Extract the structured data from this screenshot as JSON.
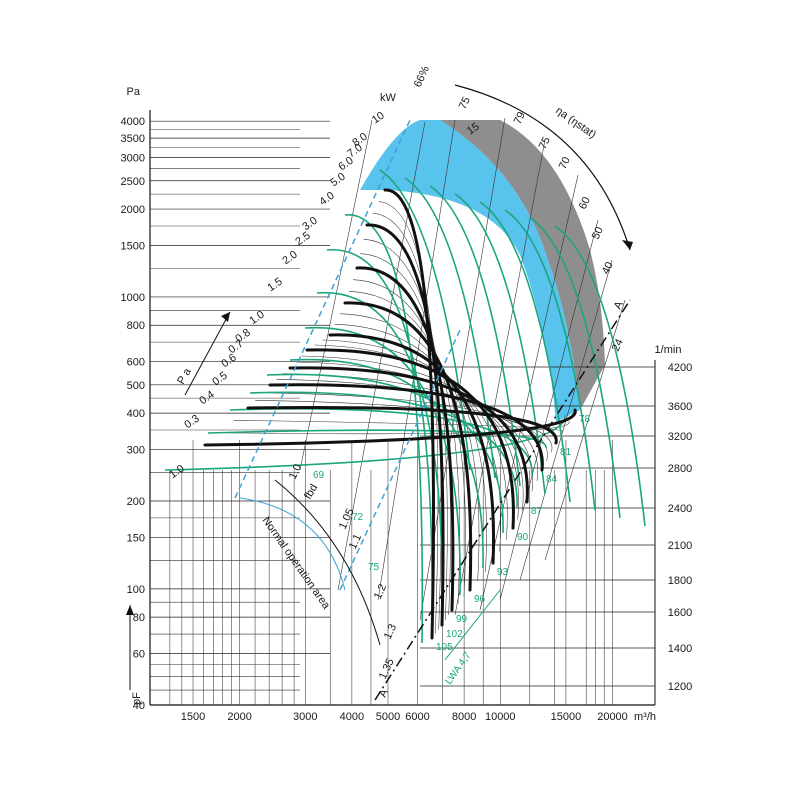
{
  "chart_data": {
    "type": "line",
    "title": "",
    "y_axis": {
      "unit": "Pa",
      "symbol": "pF",
      "scale": "log",
      "range": [
        40,
        4200
      ],
      "ticks": [
        40,
        60,
        80,
        100,
        150,
        200,
        300,
        400,
        500,
        600,
        800,
        1000,
        1500,
        2000,
        2500,
        3000,
        3500,
        4000
      ]
    },
    "x_axis": {
      "unit": "m³/h",
      "scale": "log",
      "range": [
        1150,
        26000
      ],
      "ticks": [
        1500,
        2000,
        3000,
        4000,
        5000,
        6000,
        8000,
        10000,
        15000,
        20000
      ]
    },
    "speed_axis": {
      "unit": "1/min",
      "values": [
        1200,
        1400,
        1600,
        1800,
        2100,
        2400,
        2800,
        3200,
        3600,
        4200
      ]
    },
    "speed_curves": [
      {
        "rpm": 1200,
        "sound_db": 78
      },
      {
        "rpm": 1400,
        "sound_db": 81
      },
      {
        "rpm": 1600,
        "sound_db": 84
      },
      {
        "rpm": 1800,
        "sound_db": 87
      },
      {
        "rpm": 2100,
        "sound_db": 90
      },
      {
        "rpm": 2400,
        "sound_db": 93
      },
      {
        "rpm": 2800,
        "sound_db": 96
      },
      {
        "rpm": 3200,
        "sound_db": 99
      },
      {
        "rpm": 3600,
        "sound_db": 102
      },
      {
        "rpm": 4200,
        "sound_db": 105
      }
    ],
    "sound_unit": "dB",
    "power_scale": {
      "unit": "kW",
      "values": [
        "1.0",
        "0.3",
        "0.4",
        "0.5",
        "0.6",
        "0.7",
        "0.8",
        "1.0",
        "1.5",
        "2.0",
        "2.5",
        "3.0",
        "4.0",
        "5.0",
        "6.0",
        "7.0",
        "8.0",
        "10",
        "15"
      ]
    },
    "efficiency_scale": {
      "symbol": "ηa (ηstat)",
      "values": [
        "66%",
        "75",
        "79",
        "75",
        "70",
        "60",
        "50",
        "40",
        "24"
      ]
    },
    "fbd_scale": {
      "symbol": "fbd",
      "values": [
        "1.0",
        "1.05",
        "1.1",
        "1.2",
        "1.3",
        "1.35"
      ]
    },
    "sound_at_start": {
      "values": [
        "69",
        "72",
        "75"
      ]
    },
    "labels": {
      "pa": "Pa",
      "pa_arrow": "P a",
      "kw": "kW",
      "rpm_unit": "1/min",
      "flow_unit": "m³/h",
      "pressure_symbol": "pF",
      "normal_area": "Normal operation area",
      "lwa": "LWA 4,7",
      "a_line": "A"
    },
    "colors": {
      "blue_zone": "#58c3ec",
      "grey_zone": "#8e8e8e",
      "efficiency_curve": "#1aa57c",
      "speed_curve": "#111111",
      "normal_area": "#3da2d8"
    },
    "grid": true
  }
}
